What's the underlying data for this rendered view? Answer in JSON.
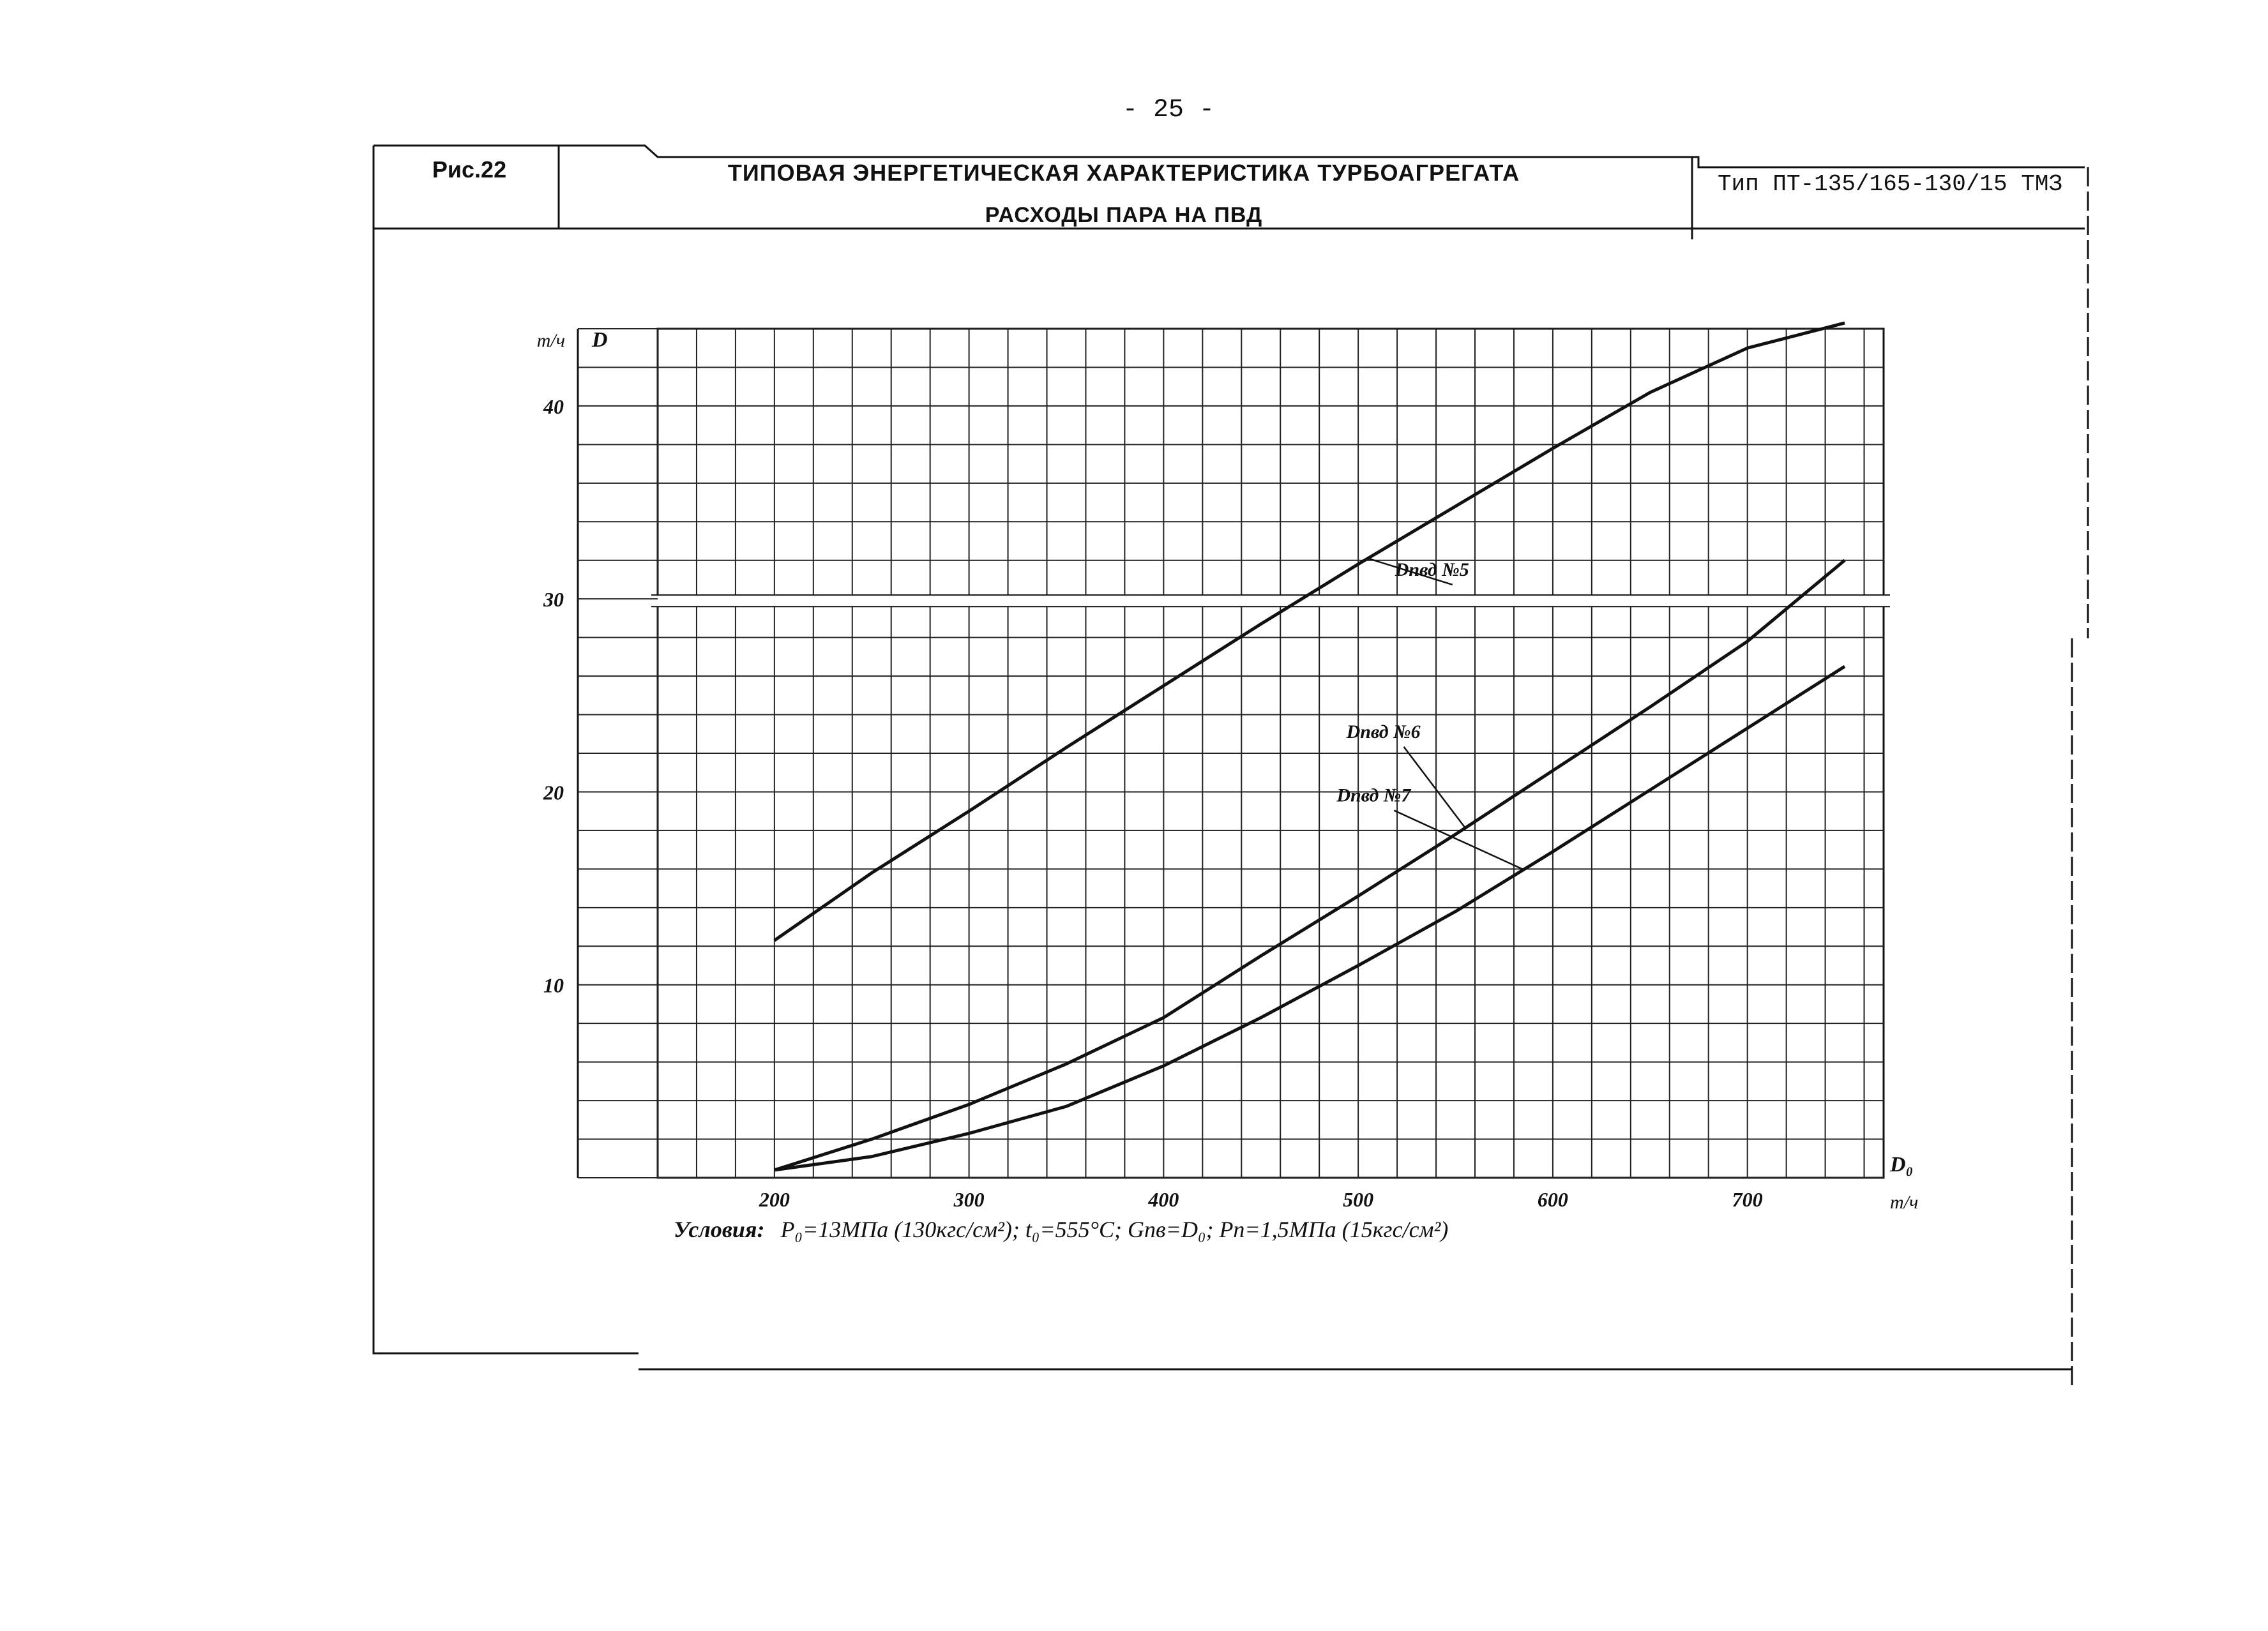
{
  "page_number": "- 25 -",
  "header": {
    "figure_label": "Рис.22",
    "title": "ТИПОВАЯ ЭНЕРГЕТИЧЕСКАЯ ХАРАКТЕРИСТИКА ТУРБОАГРЕГАТА",
    "subtitle": "РАСХОДЫ ПАРА НА ПВД",
    "type_label": "Тип ПТ-135/165-130/15 ТМЗ"
  },
  "conditions": {
    "lead": "Условия:",
    "text": "P₀=13МПа (130кгс/см²); t₀=555°C; Gпв=D₀; Pп=1,5МПа (15кгс/см²)"
  },
  "chart_data": {
    "type": "line",
    "title": "РАСХОДЫ ПАРА НА ПВД",
    "ylabel": "D",
    "yunit": "т/ч",
    "xlabel": "D₀",
    "xunit": "т/ч",
    "xlim": [
      140,
      770
    ],
    "ylim": [
      0,
      44
    ],
    "broken_y_axis": true,
    "y_ticks": [
      10,
      20,
      30,
      40
    ],
    "y_tick_labels": [
      "10",
      "20",
      "30",
      "40"
    ],
    "x_ticks": [
      200,
      300,
      400,
      500,
      600,
      700
    ],
    "x_tick_labels": [
      "200",
      "300",
      "400",
      "500",
      "600",
      "700"
    ],
    "grid": true,
    "series": [
      {
        "name": "Dпвд №5",
        "x": [
          200,
          250,
          300,
          350,
          400,
          450,
          500,
          550,
          600,
          650,
          700,
          750
        ],
        "y": [
          12.3,
          15.8,
          19.0,
          22.3,
          25.5,
          28.7,
          31.8,
          34.8,
          37.8,
          40.7,
          43.0,
          44.3
        ]
      },
      {
        "name": "Dпвд №6",
        "x": [
          200,
          250,
          300,
          350,
          400,
          450,
          500,
          550,
          600,
          650,
          700,
          750
        ],
        "y": [
          0.4,
          2.0,
          3.8,
          5.9,
          8.3,
          11.5,
          14.6,
          17.8,
          21.1,
          24.4,
          27.8,
          32.0
        ]
      },
      {
        "name": "Dпвд №7",
        "x": [
          200,
          250,
          300,
          350,
          400,
          450,
          500,
          550,
          600,
          650,
          700,
          750
        ],
        "y": [
          0.4,
          1.1,
          2.3,
          3.7,
          5.8,
          8.3,
          11.0,
          13.8,
          16.9,
          20.1,
          23.3,
          26.5
        ]
      }
    ]
  }
}
